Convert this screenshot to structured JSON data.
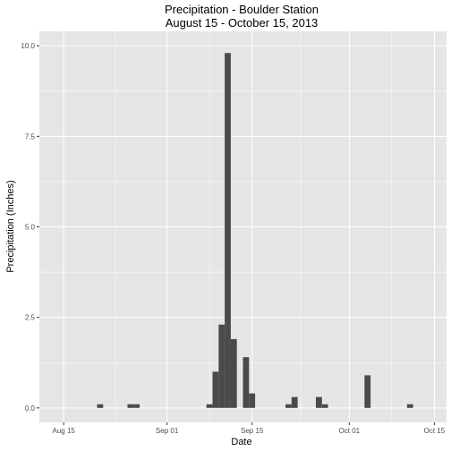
{
  "chart_data": {
    "type": "bar",
    "title": "Precipitation - Boulder Station",
    "subtitle": "August 15 - October 15, 2013",
    "xlabel": "Date",
    "ylabel": "Precipitation (Inches)",
    "ylim": [
      -0.4,
      10.4
    ],
    "xlim": [
      "2013-08-11",
      "2013-10-17"
    ],
    "x_ticks": [
      {
        "date": "2013-08-15",
        "label": "Aug 15"
      },
      {
        "date": "2013-09-01",
        "label": "Sep 01"
      },
      {
        "date": "2013-09-15",
        "label": "Sep 15"
      },
      {
        "date": "2013-10-01",
        "label": "Oct 01"
      },
      {
        "date": "2013-10-15",
        "label": "Oct 15"
      }
    ],
    "y_ticks": [
      {
        "value": 0,
        "label": "0.0"
      },
      {
        "value": 2.5,
        "label": "2.5"
      },
      {
        "value": 5,
        "label": "5.0"
      },
      {
        "value": 7.5,
        "label": "7.5"
      },
      {
        "value": 10,
        "label": "10.0"
      }
    ],
    "grid": true,
    "bar_color": "#4a4a4a",
    "panel_color": "#e5e5e5",
    "grid_color": "#ffffff",
    "points": [
      {
        "date": "2013-08-21",
        "value": 0.1
      },
      {
        "date": "2013-08-26",
        "value": 0.1
      },
      {
        "date": "2013-08-27",
        "value": 0.1
      },
      {
        "date": "2013-09-08",
        "value": 0.1
      },
      {
        "date": "2013-09-09",
        "value": 1.0
      },
      {
        "date": "2013-09-10",
        "value": 2.3
      },
      {
        "date": "2013-09-11",
        "value": 9.8
      },
      {
        "date": "2013-09-12",
        "value": 1.9
      },
      {
        "date": "2013-09-14",
        "value": 1.4
      },
      {
        "date": "2013-09-15",
        "value": 0.4
      },
      {
        "date": "2013-09-21",
        "value": 0.1
      },
      {
        "date": "2013-09-22",
        "value": 0.3
      },
      {
        "date": "2013-09-26",
        "value": 0.3
      },
      {
        "date": "2013-09-27",
        "value": 0.1
      },
      {
        "date": "2013-10-04",
        "value": 0.9
      },
      {
        "date": "2013-10-11",
        "value": 0.1
      }
    ]
  }
}
